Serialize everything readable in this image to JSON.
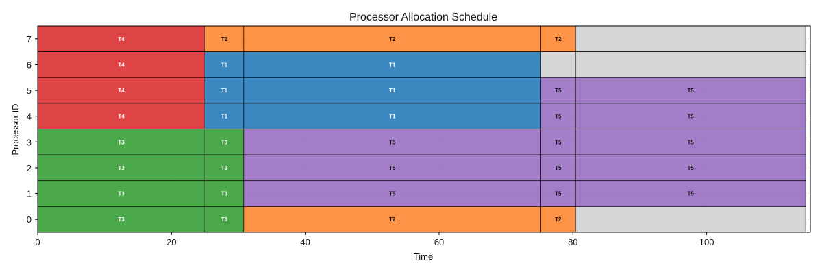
{
  "chart_data": {
    "type": "gantt",
    "title": "Processor Allocation Schedule",
    "xlabel": "Time",
    "ylabel": "Processor ID",
    "xlim": [
      0,
      115.5
    ],
    "ylim": [
      -0.5,
      7.5
    ],
    "xticks": [
      0,
      20,
      40,
      60,
      80,
      100
    ],
    "yticks": [
      0,
      1,
      2,
      3,
      4,
      5,
      6,
      7
    ],
    "grid": true,
    "colors": {
      "T1": "#3182bd",
      "T2": "#fd8d3c",
      "T3": "#41a441",
      "T4": "#dc3a3c",
      "T5": "#9e76c4",
      "idle": "#d6d6d6"
    },
    "label_colors": {
      "T1": "#ffffff",
      "T2": "#111111",
      "T3": "#ffffff",
      "T4": "#ffffff",
      "T5": "#111111",
      "idle": "#111111"
    },
    "segments": [
      {
        "processor": 7,
        "start": 0,
        "end": 25,
        "task": "T4",
        "label": "T4"
      },
      {
        "processor": 7,
        "start": 25,
        "end": 30.8,
        "task": "T2",
        "label": "T2"
      },
      {
        "processor": 7,
        "start": 30.8,
        "end": 75.2,
        "task": "T2",
        "label": "T2"
      },
      {
        "processor": 7,
        "start": 75.2,
        "end": 80.4,
        "task": "T2",
        "label": "T2"
      },
      {
        "processor": 7,
        "start": 80.4,
        "end": 114.8,
        "task": "idle",
        "label": ""
      },
      {
        "processor": 6,
        "start": 0,
        "end": 25,
        "task": "T4",
        "label": "T4"
      },
      {
        "processor": 6,
        "start": 25,
        "end": 30.8,
        "task": "T1",
        "label": "T1"
      },
      {
        "processor": 6,
        "start": 30.8,
        "end": 75.2,
        "task": "T1",
        "label": "T1"
      },
      {
        "processor": 6,
        "start": 75.2,
        "end": 80.4,
        "task": "idle",
        "label": ""
      },
      {
        "processor": 6,
        "start": 80.4,
        "end": 114.8,
        "task": "idle",
        "label": ""
      },
      {
        "processor": 5,
        "start": 0,
        "end": 25,
        "task": "T4",
        "label": "T4"
      },
      {
        "processor": 5,
        "start": 25,
        "end": 30.8,
        "task": "T1",
        "label": "T1"
      },
      {
        "processor": 5,
        "start": 30.8,
        "end": 75.2,
        "task": "T1",
        "label": "T1"
      },
      {
        "processor": 5,
        "start": 75.2,
        "end": 80.4,
        "task": "T5",
        "label": "T5"
      },
      {
        "processor": 5,
        "start": 80.4,
        "end": 114.8,
        "task": "T5",
        "label": "T5"
      },
      {
        "processor": 4,
        "start": 0,
        "end": 25,
        "task": "T4",
        "label": "T4"
      },
      {
        "processor": 4,
        "start": 25,
        "end": 30.8,
        "task": "T1",
        "label": "T1"
      },
      {
        "processor": 4,
        "start": 30.8,
        "end": 75.2,
        "task": "T1",
        "label": "T1"
      },
      {
        "processor": 4,
        "start": 75.2,
        "end": 80.4,
        "task": "T5",
        "label": "T5"
      },
      {
        "processor": 4,
        "start": 80.4,
        "end": 114.8,
        "task": "T5",
        "label": "T5"
      },
      {
        "processor": 3,
        "start": 0,
        "end": 25,
        "task": "T3",
        "label": "T3"
      },
      {
        "processor": 3,
        "start": 25,
        "end": 30.8,
        "task": "T3",
        "label": "T3"
      },
      {
        "processor": 3,
        "start": 30.8,
        "end": 75.2,
        "task": "T5",
        "label": "T5"
      },
      {
        "processor": 3,
        "start": 75.2,
        "end": 80.4,
        "task": "T5",
        "label": "T5"
      },
      {
        "processor": 3,
        "start": 80.4,
        "end": 114.8,
        "task": "T5",
        "label": "T5"
      },
      {
        "processor": 2,
        "start": 0,
        "end": 25,
        "task": "T3",
        "label": "T3"
      },
      {
        "processor": 2,
        "start": 25,
        "end": 30.8,
        "task": "T3",
        "label": "T3"
      },
      {
        "processor": 2,
        "start": 30.8,
        "end": 75.2,
        "task": "T5",
        "label": "T5"
      },
      {
        "processor": 2,
        "start": 75.2,
        "end": 80.4,
        "task": "T5",
        "label": "T5"
      },
      {
        "processor": 2,
        "start": 80.4,
        "end": 114.8,
        "task": "T5",
        "label": "T5"
      },
      {
        "processor": 1,
        "start": 0,
        "end": 25,
        "task": "T3",
        "label": "T3"
      },
      {
        "processor": 1,
        "start": 25,
        "end": 30.8,
        "task": "T3",
        "label": "T3"
      },
      {
        "processor": 1,
        "start": 30.8,
        "end": 75.2,
        "task": "T5",
        "label": "T5"
      },
      {
        "processor": 1,
        "start": 75.2,
        "end": 80.4,
        "task": "T5",
        "label": "T5"
      },
      {
        "processor": 1,
        "start": 80.4,
        "end": 114.8,
        "task": "T5",
        "label": "T5"
      },
      {
        "processor": 0,
        "start": 0,
        "end": 25,
        "task": "T3",
        "label": "T3"
      },
      {
        "processor": 0,
        "start": 25,
        "end": 30.8,
        "task": "T3",
        "label": "T3"
      },
      {
        "processor": 0,
        "start": 30.8,
        "end": 75.2,
        "task": "T2",
        "label": "T2"
      },
      {
        "processor": 0,
        "start": 75.2,
        "end": 80.4,
        "task": "T2",
        "label": "T2"
      },
      {
        "processor": 0,
        "start": 80.4,
        "end": 114.8,
        "task": "idle",
        "label": ""
      }
    ]
  }
}
